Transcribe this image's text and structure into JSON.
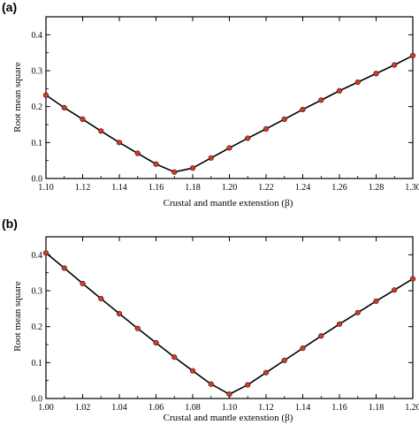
{
  "chart_data": [
    {
      "type": "line",
      "panel_label": "(a)",
      "title": "",
      "xlabel": "Crustal and mantle extenstion (β)",
      "ylabel": "Root mean square",
      "xlim": [
        1.1,
        1.3
      ],
      "ylim": [
        0.0,
        0.45
      ],
      "xticks": [
        "1.10",
        "1.12",
        "1.14",
        "1.16",
        "1.18",
        "1.20",
        "1.22",
        "1.24",
        "1.26",
        "1.28",
        "1.30"
      ],
      "yticks": [
        "0.0",
        "0.1",
        "0.2",
        "0.3",
        "0.4"
      ],
      "grid": false,
      "series": [
        {
          "marker_color": "#d43a2a",
          "line_color": "#000000",
          "x": [
            1.1,
            1.11,
            1.12,
            1.13,
            1.14,
            1.15,
            1.16,
            1.17,
            1.18,
            1.19,
            1.2,
            1.21,
            1.22,
            1.23,
            1.24,
            1.25,
            1.26,
            1.27,
            1.28,
            1.29,
            1.3
          ],
          "y": [
            0.232,
            0.197,
            0.165,
            0.132,
            0.1,
            0.07,
            0.04,
            0.018,
            0.029,
            0.057,
            0.085,
            0.112,
            0.138,
            0.165,
            0.192,
            0.218,
            0.244,
            0.268,
            0.292,
            0.316,
            0.342
          ]
        }
      ]
    },
    {
      "type": "line",
      "panel_label": "(b)",
      "title": "",
      "xlabel": "Crustal and mantle extenstion (β)",
      "ylabel": "Root mean square",
      "xlim": [
        1.0,
        1.2
      ],
      "ylim": [
        0.0,
        0.45
      ],
      "xticks": [
        "1.00",
        "1.02",
        "1.04",
        "1.06",
        "1.08",
        "1.10",
        "1.12",
        "1.14",
        "1.16",
        "1.18",
        "1.20"
      ],
      "yticks": [
        "0.0",
        "0.1",
        "0.2",
        "0.3",
        "0.4"
      ],
      "grid": false,
      "series": [
        {
          "marker_color": "#d43a2a",
          "line_color": "#000000",
          "x": [
            1.0,
            1.01,
            1.02,
            1.03,
            1.04,
            1.05,
            1.06,
            1.07,
            1.08,
            1.09,
            1.1,
            1.11,
            1.12,
            1.13,
            1.14,
            1.15,
            1.16,
            1.17,
            1.18,
            1.19,
            1.2
          ],
          "y": [
            0.405,
            0.363,
            0.32,
            0.278,
            0.236,
            0.195,
            0.155,
            0.115,
            0.077,
            0.04,
            0.012,
            0.038,
            0.072,
            0.106,
            0.14,
            0.174,
            0.207,
            0.239,
            0.271,
            0.302,
            0.333
          ]
        }
      ]
    }
  ]
}
